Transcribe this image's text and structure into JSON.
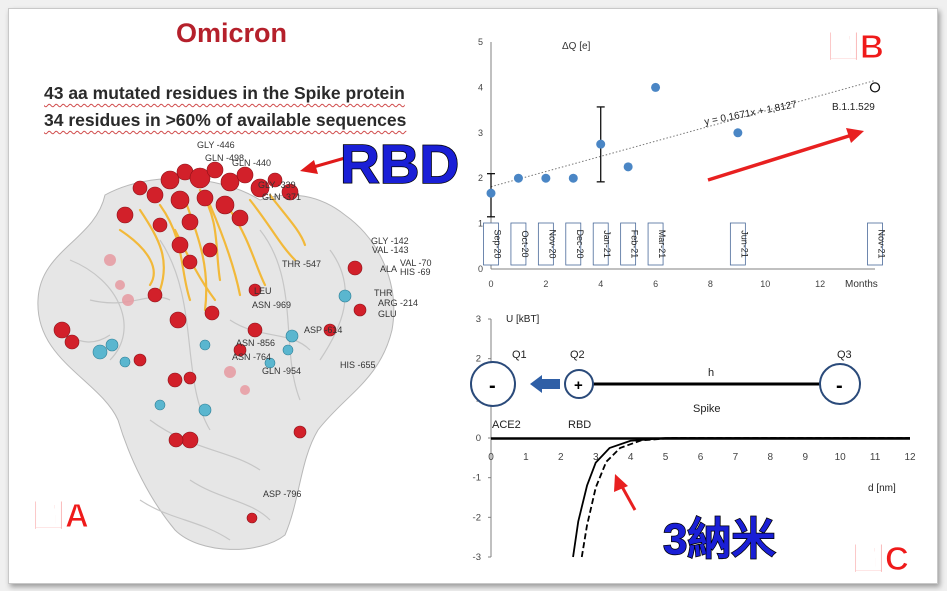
{
  "panel_a": {
    "title": "Omicron",
    "subtitle_line1": "43 aa mutated residues in the Spike protein",
    "subtitle_line2": "34 residues in >60% of available sequences",
    "rbd_label": "RBD",
    "panel_label": "圖A",
    "residue_labels": [
      "GLY -446",
      "GLN -498",
      "GLN -440",
      "GLY -339",
      "GLN -371",
      "GLY -142",
      "VAL -143",
      "VAL -70",
      "HIS -69",
      "ALA",
      "THR",
      "ARG -214",
      "GLU",
      "THR -547",
      "LEU",
      "ASN -969",
      "ASP -614",
      "ASN -856",
      "ASN -764",
      "GLN -954",
      "HIS -655",
      "ASP -796"
    ]
  },
  "panel_b": {
    "panel_label": "圖B",
    "ylabel": "ΔQ  [e]",
    "xlabel": "Months",
    "equation": "y = 0,1671x + 1,8127",
    "variant_label": "B.1.1.529",
    "month_labels": [
      "Sep-20",
      "Oct-20",
      "Nov-20",
      "Dec-20",
      "Jan-21",
      "Feb-21",
      "Mar-21",
      "Jun-21",
      "Nov-21"
    ]
  },
  "panel_c": {
    "panel_label": "圖C",
    "ylabel": "U [kBT]",
    "xlabel": "d [nm]",
    "q1": "Q1",
    "q2": "Q2",
    "q3": "Q3",
    "h_label": "h",
    "ace2_label": "ACE2",
    "rbd_label": "RBD",
    "spike_label": "Spike",
    "minus_sign": "-",
    "plus_sign": "+",
    "nm_label": "3納米"
  },
  "chart_data": [
    {
      "type": "scatter",
      "ylabel": "ΔQ [e]",
      "xlabel": "Months",
      "xlim": [
        0,
        14
      ],
      "ylim": [
        0,
        5
      ],
      "x_ticks": [
        0,
        2,
        4,
        6,
        8,
        10,
        12
      ],
      "y_ticks": [
        0,
        1,
        2,
        3,
        4,
        5
      ],
      "series": [
        {
          "values": [
            {
              "x": 0,
              "y": 1.67,
              "err": [
                1.15,
                2.1
              ]
            },
            {
              "x": 1,
              "y": 2.0
            },
            {
              "x": 2,
              "y": 2.0
            },
            {
              "x": 3,
              "y": 2.0
            },
            {
              "x": 4,
              "y": 2.75,
              "err": [
                1.92,
                3.57
              ]
            },
            {
              "x": 5,
              "y": 2.25
            },
            {
              "x": 6,
              "y": 4.0
            },
            {
              "x": 9,
              "y": 3.0
            }
          ]
        },
        {
          "name": "B.1.1.529",
          "values": [
            {
              "x": 14,
              "y": 4.0
            }
          ]
        }
      ],
      "trendline": {
        "slope": 0.1671,
        "intercept": 1.8127
      },
      "colors": {
        "points": "#4a86c5",
        "arrow": "#e82020"
      }
    },
    {
      "type": "line",
      "ylabel": "U [kBT]",
      "xlabel": "d [nm]",
      "xlim": [
        0,
        12
      ],
      "ylim": [
        -3,
        3
      ],
      "x_ticks": [
        0,
        1,
        2,
        3,
        4,
        5,
        6,
        7,
        8,
        9,
        10,
        11,
        12
      ],
      "y_ticks": [
        -3,
        -2,
        -1,
        0,
        1,
        2,
        3
      ],
      "series": [
        {
          "style": "solid",
          "values": [
            {
              "x": 2.35,
              "y": -3.0
            },
            {
              "x": 2.5,
              "y": -2.1
            },
            {
              "x": 2.75,
              "y": -1.2
            },
            {
              "x": 3.0,
              "y": -0.62
            },
            {
              "x": 3.4,
              "y": -0.25
            },
            {
              "x": 4.0,
              "y": -0.07
            },
            {
              "x": 5.0,
              "y": 0.0
            },
            {
              "x": 12.0,
              "y": 0.0
            }
          ]
        },
        {
          "style": "dashed",
          "values": [
            {
              "x": 2.6,
              "y": -3.0
            },
            {
              "x": 2.75,
              "y": -2.2
            },
            {
              "x": 3.0,
              "y": -1.25
            },
            {
              "x": 3.3,
              "y": -0.6
            },
            {
              "x": 3.7,
              "y": -0.25
            },
            {
              "x": 4.3,
              "y": -0.06
            },
            {
              "x": 5.2,
              "y": 0.0
            },
            {
              "x": 12.0,
              "y": 0.0
            }
          ]
        }
      ]
    }
  ]
}
